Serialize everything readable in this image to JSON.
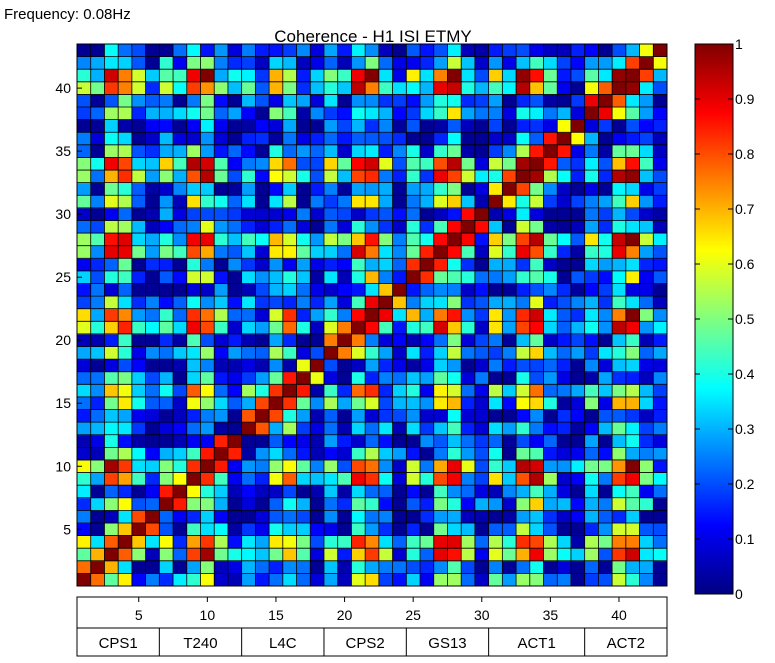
{
  "frequency_label": "Frequency: 0.08Hz",
  "chart_data": {
    "type": "heatmap",
    "title": "Coherence - H1 ISI ETMY",
    "xlabel": "",
    "ylabel": "",
    "n_channels": 43,
    "xlim": [
      0.5,
      43.5
    ],
    "ylim": [
      0.5,
      43.5
    ],
    "x_ticks": [
      5,
      10,
      15,
      20,
      25,
      30,
      35,
      40
    ],
    "y_ticks": [
      5,
      10,
      15,
      20,
      25,
      30,
      35,
      40
    ],
    "colorbar": {
      "range": [
        0,
        1
      ],
      "ticks": [
        0,
        0.1,
        0.2,
        0.3,
        0.4,
        0.5,
        0.6,
        0.7,
        0.8,
        0.9,
        1
      ],
      "colormap": "jet"
    },
    "channel_groups": [
      {
        "label": "CPS1",
        "start": 1,
        "end": 6
      },
      {
        "label": "T240",
        "start": 7,
        "end": 12
      },
      {
        "label": "L4C",
        "start": 13,
        "end": 18
      },
      {
        "label": "CPS2",
        "start": 19,
        "end": 24
      },
      {
        "label": "GS13",
        "start": 25,
        "end": 30
      },
      {
        "label": "ACT1",
        "start": 31,
        "end": 37
      },
      {
        "label": "ACT2",
        "start": 38,
        "end": 43
      }
    ],
    "grid": true,
    "colors": {
      "grid_line": "#000000",
      "background": "#ffffff"
    }
  }
}
